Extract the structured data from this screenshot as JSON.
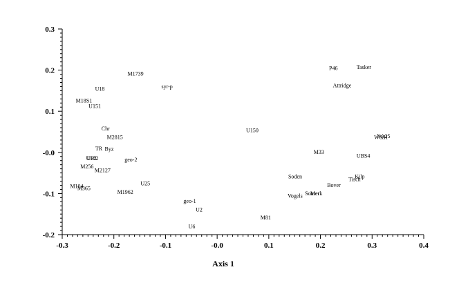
{
  "chart_data": {
    "type": "scatter",
    "xlabel": "Axis 1",
    "ylabel": "",
    "xlim": [
      -0.3,
      0.4
    ],
    "ylim": [
      -0.2,
      0.3
    ],
    "x_ticks": [
      "-0.3",
      "-0.2",
      "-0.1",
      "-0.0",
      "0.1",
      "0.2",
      "0.3",
      "0.4"
    ],
    "y_ticks": [
      "0.3",
      "0.2",
      "0.1",
      "-0.0",
      "-0.1",
      "-0.2"
    ],
    "grid": false,
    "points": [
      {
        "label": "M1739",
        "x": -0.158,
        "y": 0.192
      },
      {
        "label": "syr-p",
        "x": -0.097,
        "y": 0.161
      },
      {
        "label": "U18",
        "x": -0.227,
        "y": 0.155
      },
      {
        "label": "M18S1",
        "x": -0.258,
        "y": 0.126
      },
      {
        "label": "U151",
        "x": -0.237,
        "y": 0.113
      },
      {
        "label": "Chr",
        "x": -0.216,
        "y": 0.058
      },
      {
        "label": "M2815",
        "x": -0.198,
        "y": 0.037
      },
      {
        "label": "TR",
        "x": -0.229,
        "y": 0.01
      },
      {
        "label": "Byz",
        "x": -0.209,
        "y": 0.009
      },
      {
        "label": "U32",
        "x": -0.243,
        "y": -0.014
      },
      {
        "label": "U182",
        "x": -0.242,
        "y": -0.014
      },
      {
        "label": "geo-2",
        "x": -0.167,
        "y": -0.017
      },
      {
        "label": "M256",
        "x": -0.252,
        "y": -0.034
      },
      {
        "label": "M2127",
        "x": -0.222,
        "y": -0.043
      },
      {
        "label": "M104",
        "x": -0.272,
        "y": -0.082
      },
      {
        "label": "M365",
        "x": -0.258,
        "y": -0.087
      },
      {
        "label": "U25",
        "x": -0.139,
        "y": -0.075
      },
      {
        "label": "M1962",
        "x": -0.178,
        "y": -0.096
      },
      {
        "label": "geo-1",
        "x": -0.053,
        "y": -0.118
      },
      {
        "label": "U2",
        "x": -0.035,
        "y": -0.139
      },
      {
        "label": "U6",
        "x": -0.049,
        "y": -0.18
      },
      {
        "label": "M81",
        "x": 0.094,
        "y": -0.158
      },
      {
        "label": "U150",
        "x": 0.068,
        "y": 0.054
      },
      {
        "label": "P46",
        "x": 0.225,
        "y": 0.205
      },
      {
        "label": "Tasker",
        "x": 0.284,
        "y": 0.208
      },
      {
        "label": "Attridge",
        "x": 0.242,
        "y": 0.163
      },
      {
        "label": "NA25",
        "x": 0.322,
        "y": 0.04
      },
      {
        "label": "W&H",
        "x": 0.317,
        "y": 0.037
      },
      {
        "label": "M33",
        "x": 0.197,
        "y": 0.001
      },
      {
        "label": "UBS4",
        "x": 0.283,
        "y": -0.008
      },
      {
        "label": "Soden",
        "x": 0.151,
        "y": -0.058
      },
      {
        "label": "Kilp",
        "x": 0.276,
        "y": -0.058
      },
      {
        "label": "Tisch",
        "x": 0.266,
        "y": -0.065
      },
      {
        "label": "Bover",
        "x": 0.226,
        "y": -0.079
      },
      {
        "label": "Merk",
        "x": 0.192,
        "y": -0.099
      },
      {
        "label": "Souter",
        "x": 0.184,
        "y": -0.099
      },
      {
        "label": "Vogels",
        "x": 0.151,
        "y": -0.105
      }
    ]
  }
}
